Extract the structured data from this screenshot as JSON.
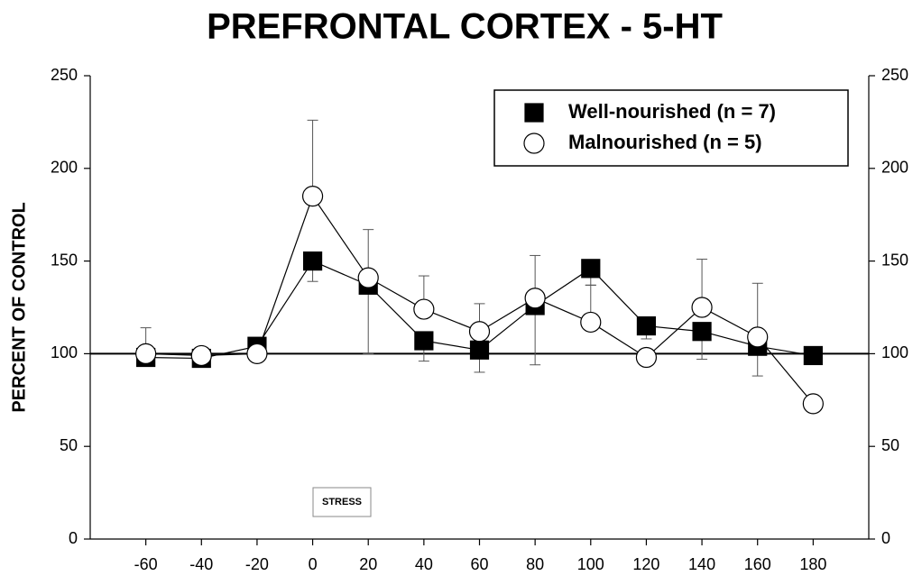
{
  "chart_data": {
    "type": "line",
    "title": "PREFRONTAL CORTEX - 5-HT",
    "y_label": "PERCENT OF CONTROL",
    "annotation": "STRESS",
    "x": [
      -60,
      -40,
      -20,
      0,
      20,
      40,
      60,
      80,
      100,
      120,
      140,
      160,
      180
    ],
    "series": [
      {
        "name": "Well-nourished (n = 7)",
        "color": "#000000",
        "marker": "square",
        "error_side": "down",
        "values": [
          98,
          97.5,
          104,
          150,
          137,
          107,
          102,
          126,
          146,
          115,
          112,
          104,
          99
        ],
        "errors": [
          null,
          null,
          7,
          11,
          37,
          11,
          12,
          32,
          9,
          7,
          15,
          16,
          null
        ]
      },
      {
        "name": "Malnourished (n = 5)",
        "color": "#ffffff",
        "marker": "circle",
        "error_side": "up",
        "values": [
          100,
          99,
          100,
          185,
          141,
          124,
          112,
          130,
          117,
          98,
          125,
          109,
          73
        ],
        "errors": [
          14,
          null,
          null,
          41,
          26,
          18,
          15,
          23,
          20,
          null,
          26,
          29,
          null
        ]
      }
    ],
    "hline": 100,
    "xlim": [
      -80,
      200
    ],
    "xticks": [
      -60,
      -40,
      -20,
      0,
      20,
      40,
      60,
      80,
      100,
      120,
      140,
      160,
      180
    ],
    "ylim": [
      0,
      250
    ],
    "yticks": [
      0,
      50,
      100,
      150,
      200,
      250
    ],
    "y2lim": [
      0,
      250
    ],
    "y2ticks": [
      0,
      50,
      100,
      150,
      200,
      250
    ],
    "legend": "upper right"
  }
}
